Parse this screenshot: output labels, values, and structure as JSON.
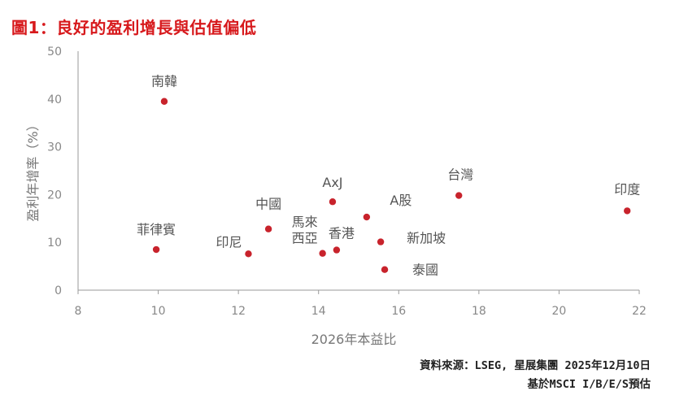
{
  "title": "圖1：良好的盈利增長與估值偏低",
  "source_line1": "資料來源：LSEG, 星展集團 2025年12月10日",
  "source_line2": "基於MSCI I/B/E/S預估",
  "colors": {
    "title": "#d7191c",
    "point": "#c8232c",
    "axis": "#999999",
    "tick": "#888888",
    "label": "#555555"
  },
  "chart_data": {
    "type": "scatter",
    "xlabel": "2026年本益比",
    "ylabel": "盈利年增率（%）",
    "xlim": [
      8,
      22
    ],
    "ylim": [
      0,
      50
    ],
    "xticks": [
      8,
      10,
      12,
      14,
      16,
      18,
      20,
      22
    ],
    "yticks": [
      0,
      10,
      20,
      30,
      40,
      50
    ],
    "grid": false,
    "points": [
      {
        "label": "南韓",
        "x": 10.15,
        "y": 39.5
      },
      {
        "label": "菲律賓",
        "x": 9.95,
        "y": 8.5
      },
      {
        "label": "印尼",
        "x": 12.25,
        "y": 7.6
      },
      {
        "label": "中國",
        "x": 12.75,
        "y": 12.8
      },
      {
        "label": "馬來\n西亞",
        "x": 14.1,
        "y": 7.7
      },
      {
        "label": "香港",
        "x": 14.45,
        "y": 8.4
      },
      {
        "label": "AxJ",
        "x": 14.35,
        "y": 18.5
      },
      {
        "label": "A股",
        "x": 15.2,
        "y": 15.3
      },
      {
        "label": "新加坡",
        "x": 15.55,
        "y": 10.1
      },
      {
        "label": "泰國",
        "x": 15.65,
        "y": 4.3
      },
      {
        "label": "台灣",
        "x": 17.5,
        "y": 19.8
      },
      {
        "label": "印度",
        "x": 21.7,
        "y": 16.6
      }
    ]
  }
}
